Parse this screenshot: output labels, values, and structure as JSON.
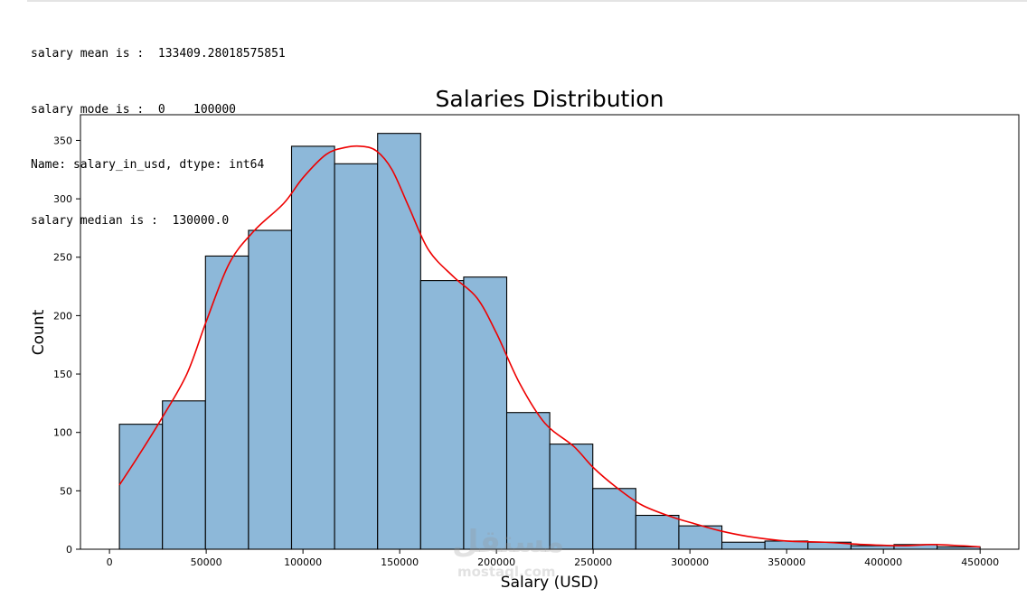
{
  "console": {
    "lines": [
      "salary mean is :  133409.28018575851",
      "salary mode is :  0    100000",
      "Name: salary_in_usd, dtype: int64",
      "salary median is :  130000.0"
    ]
  },
  "watermark": {
    "text": "مستقل",
    "sub": "mostaql.com"
  },
  "colors": {
    "bar_fill": "#8db8d9",
    "bar_edge": "#000000",
    "kde_line": "#ee0000"
  },
  "chart_data": {
    "type": "bar",
    "title": "Salaries Distribution",
    "xlabel": "Salary (USD)",
    "ylabel": "Count",
    "xlim": [
      -15000,
      470000
    ],
    "ylim": [
      0,
      372
    ],
    "xticks": [
      0,
      50000,
      100000,
      150000,
      200000,
      250000,
      300000,
      350000,
      400000,
      450000
    ],
    "yticks": [
      0,
      50,
      100,
      150,
      200,
      250,
      300,
      350
    ],
    "bin_edges": [
      5132,
      27375,
      49618,
      71861,
      94104,
      116347,
      138590,
      160833,
      183076,
      205319,
      227562,
      249805,
      272048,
      294291,
      316534,
      338777,
      361020,
      383263,
      405506,
      427749,
      450000
    ],
    "values": [
      107,
      127,
      251,
      273,
      345,
      330,
      356,
      230,
      233,
      117,
      90,
      52,
      29,
      20,
      6,
      7,
      6,
      3,
      4,
      2
    ],
    "kde": {
      "x": [
        5132,
        15000,
        27000,
        40000,
        50000,
        62000,
        75000,
        90000,
        100000,
        112000,
        122000,
        130000,
        138000,
        146000,
        155000,
        165000,
        178000,
        190000,
        200000,
        212000,
        225000,
        240000,
        250000,
        262000,
        275000,
        290000,
        300000,
        315000,
        330000,
        350000,
        370000,
        390000,
        410000,
        425000,
        440000,
        450000
      ],
      "y": [
        55,
        80,
        112,
        150,
        195,
        245,
        273,
        296,
        318,
        338,
        344,
        345,
        341,
        325,
        292,
        256,
        233,
        215,
        185,
        142,
        108,
        88,
        70,
        53,
        38,
        28,
        23,
        16,
        11,
        7,
        6,
        4,
        3,
        4,
        3,
        2
      ]
    }
  }
}
